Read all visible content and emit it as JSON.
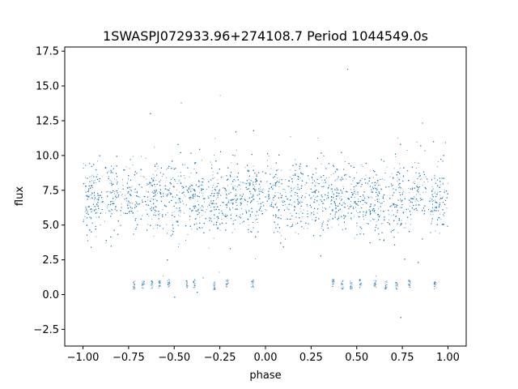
{
  "chart_data": {
    "type": "scatter",
    "title": "1SWASPJ072933.96+274108.7 Period 1044549.0s",
    "xlabel": "phase",
    "ylabel": "flux",
    "xlim": [
      -1.1,
      1.1
    ],
    "ylim": [
      -3.7,
      17.8
    ],
    "xticks": [
      -1.0,
      -0.75,
      -0.5,
      -0.25,
      0.0,
      0.25,
      0.5,
      0.75,
      1.0
    ],
    "xtick_labels": [
      "−1.00",
      "−0.75",
      "−0.50",
      "−0.25",
      "0.00",
      "0.25",
      "0.50",
      "0.75",
      "1.00"
    ],
    "yticks": [
      -2.5,
      0.0,
      2.5,
      5.0,
      7.5,
      10.0,
      12.5,
      15.0,
      17.5
    ],
    "ytick_labels": [
      "−2.5",
      "0.0",
      "2.5",
      "5.0",
      "7.5",
      "10.0",
      "12.5",
      "15.0",
      "17.5"
    ],
    "grid": false,
    "legend": "none",
    "point_color": "#1f77b4",
    "series": [
      {
        "phase_range": [
          -1.0,
          1.0
        ],
        "flux_core_median": 7.0,
        "flux_core_range": [
          5.0,
          9.0
        ],
        "flux_full_range": [
          -2.7,
          16.2
        ],
        "low_flux_clusters": [
          {
            "phase": -0.72,
            "flux": 0.7
          },
          {
            "phase": -0.67,
            "flux": 0.7
          },
          {
            "phase": -0.62,
            "flux": 0.7
          },
          {
            "phase": -0.58,
            "flux": 0.7
          },
          {
            "phase": -0.53,
            "flux": 0.8
          },
          {
            "phase": -0.43,
            "flux": 0.7
          },
          {
            "phase": -0.39,
            "flux": 0.8
          },
          {
            "phase": -0.28,
            "flux": 0.6
          },
          {
            "phase": -0.21,
            "flux": 0.8
          },
          {
            "phase": -0.07,
            "flux": 0.8
          },
          {
            "phase": 0.37,
            "flux": 0.8
          },
          {
            "phase": 0.42,
            "flux": 0.7
          },
          {
            "phase": 0.47,
            "flux": 0.7
          },
          {
            "phase": 0.52,
            "flux": 0.8
          },
          {
            "phase": 0.6,
            "flux": 0.8
          },
          {
            "phase": 0.66,
            "flux": 0.7
          },
          {
            "phase": 0.72,
            "flux": 0.6
          },
          {
            "phase": 0.79,
            "flux": 0.8
          },
          {
            "phase": 0.93,
            "flux": 0.7
          }
        ]
      }
    ]
  }
}
